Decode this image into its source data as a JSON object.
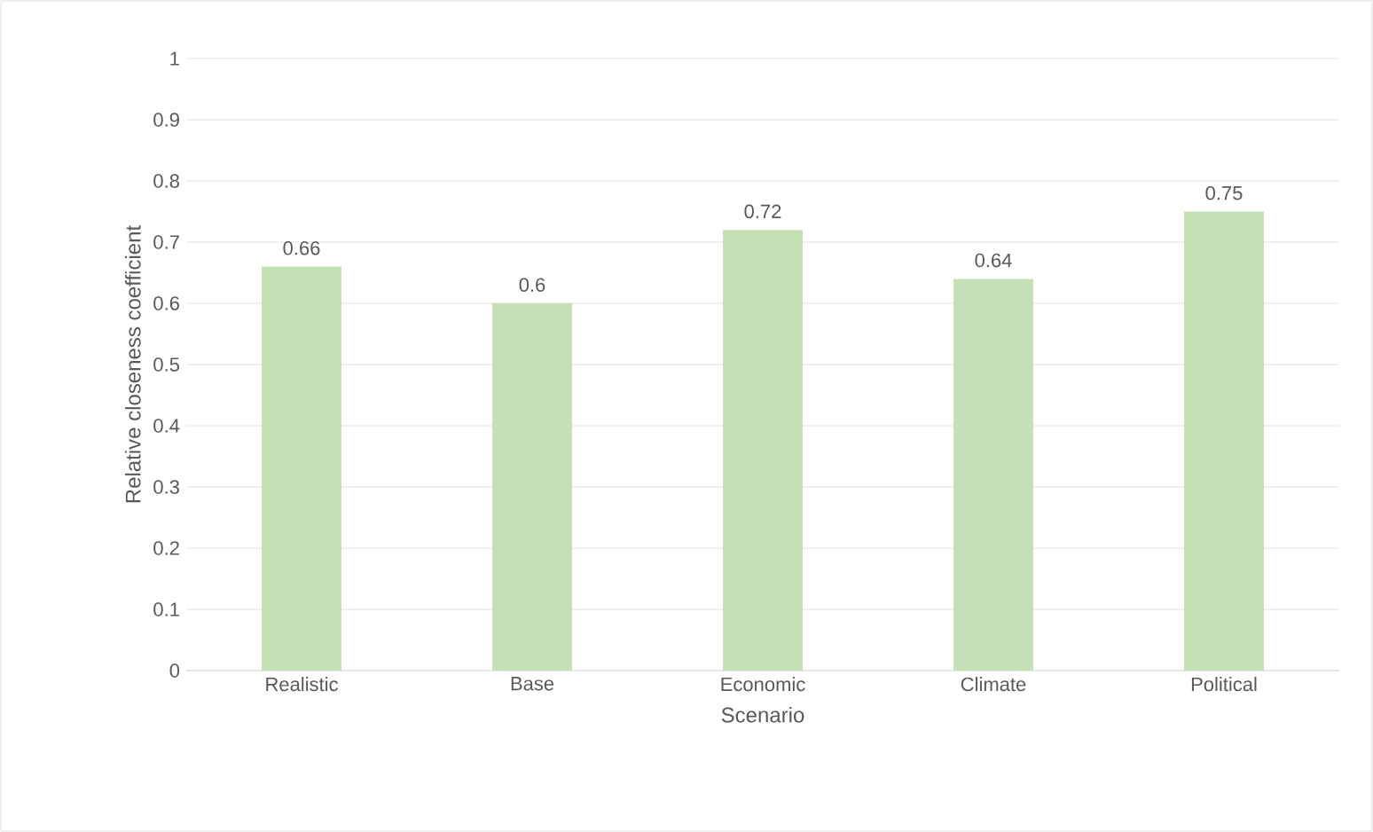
{
  "chart_data": {
    "type": "bar",
    "xlabel": "Scenario",
    "ylabel": "Relative closeness coefficient",
    "categories": [
      "Realistic",
      "Base",
      "Economic",
      "Climate",
      "Political"
    ],
    "values": [
      0.66,
      0.6,
      0.72,
      0.64,
      0.75
    ],
    "color": "#c5e0b4",
    "ylim": [
      0,
      1
    ],
    "yticks": [
      0,
      0.1,
      0.2,
      0.3,
      0.4,
      0.5,
      0.6,
      0.7,
      0.8,
      0.9,
      1
    ],
    "grid": "y",
    "data_labels": true
  }
}
